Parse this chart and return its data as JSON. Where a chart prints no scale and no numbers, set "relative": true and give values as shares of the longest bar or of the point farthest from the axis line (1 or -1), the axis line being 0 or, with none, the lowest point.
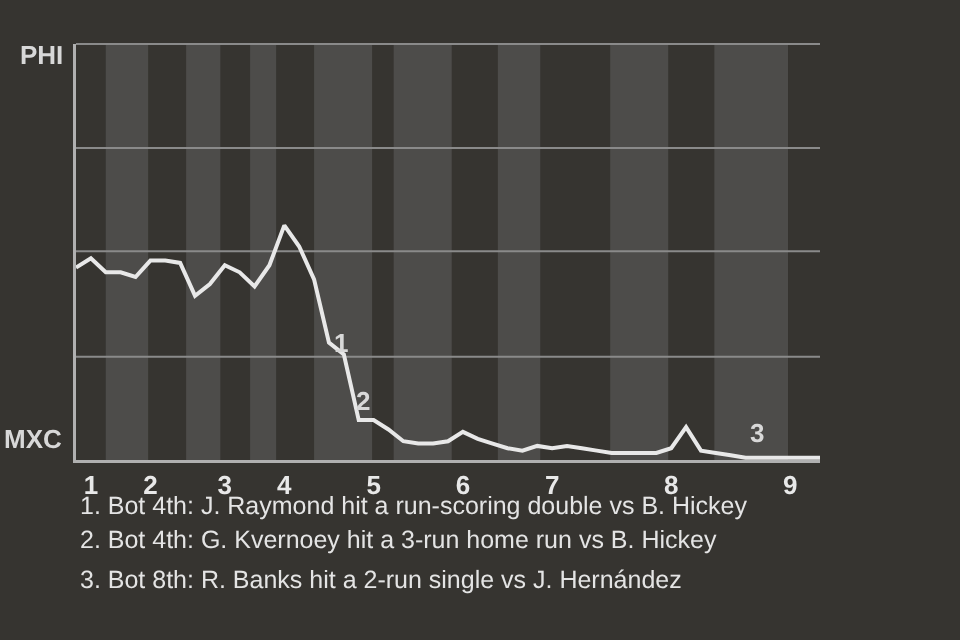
{
  "chart_data": {
    "type": "line",
    "relative": true,
    "categories": [
      null,
      "1",
      null,
      null,
      null,
      "2",
      null,
      null,
      null,
      null,
      "3",
      null,
      null,
      null,
      "4",
      null,
      null,
      null,
      null,
      null,
      "5",
      null,
      null,
      null,
      null,
      null,
      "6",
      null,
      null,
      null,
      null,
      null,
      "7",
      null,
      null,
      null,
      null,
      null,
      null,
      null,
      "8",
      null,
      null,
      null,
      null,
      null,
      null,
      null,
      "9",
      null,
      null
    ],
    "series": [
      {
        "color": "#e8e8e8",
        "values": [
          0.82,
          0.86,
          0.8,
          0.8,
          0.78,
          0.85,
          0.85,
          0.84,
          0.7,
          0.75,
          0.83,
          0.8,
          0.74,
          0.83,
          1,
          0.91,
          0.77,
          0.5,
          0.45,
          0.17,
          0.17,
          0.13,
          0.08,
          0.07,
          0.07,
          0.08,
          0.12,
          0.09,
          0.07,
          0.05,
          0.04,
          0.06,
          0.05,
          0.06,
          0.05,
          0.04,
          0.03,
          0.03,
          0.03,
          0.03,
          0.05,
          0.14,
          0.04,
          0.03,
          0.02,
          0.01,
          0.01,
          0.01,
          0.01,
          0.01,
          0.01
        ]
      }
    ],
    "marker": "none",
    "line_style": "solid",
    "ref_lines": [
      {
        "axis": "y",
        "value": 0.44,
        "color": "#8a8a8a"
      },
      {
        "axis": "y",
        "value": 0.89,
        "color": "#8a8a8a"
      },
      {
        "axis": "y",
        "value": 1.33,
        "color": "#8a8a8a"
      }
    ],
    "annotations": [
      "PHI",
      "MXC",
      "1",
      "2",
      "3",
      "1. Bot 4th: J. Raymond hit a run-scoring double vs B. Hickey",
      "2. Bot 4th: G. Kvernoey hit a 3-run home run vs B. Hickey",
      "3. Bot 8th: R. Banks hit a 2-run single vs J. Hernández"
    ]
  }
}
